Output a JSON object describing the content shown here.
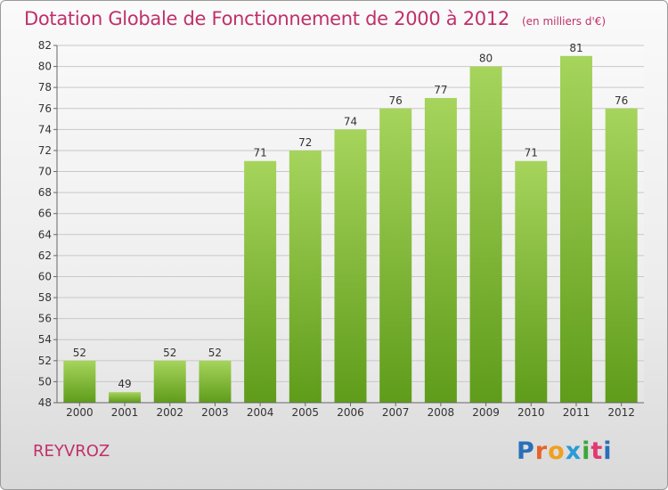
{
  "header": {
    "title": "Dotation Globale de Fonctionnement de 2000 à 2012",
    "unit": "(en milliers d'€)"
  },
  "footer": {
    "place": "REYVROZ",
    "logo_letters": [
      "P",
      "r",
      "o",
      "x",
      "i",
      "t",
      "i"
    ],
    "logo_colors": [
      "#2a6fb8",
      "#e8622a",
      "#f0a020",
      "#2a9bd6",
      "#3aa83a",
      "#e03a70",
      "#2a6fb8"
    ]
  },
  "colors": {
    "bar_top": "#a6d45c",
    "bar_bottom": "#5f9c1a",
    "accent": "#c0306a"
  },
  "chart_data": {
    "type": "bar",
    "categories": [
      "2000",
      "2001",
      "2002",
      "2003",
      "2004",
      "2005",
      "2006",
      "2007",
      "2008",
      "2009",
      "2010",
      "2011",
      "2012"
    ],
    "values": [
      52,
      49,
      52,
      52,
      71,
      72,
      74,
      76,
      77,
      80,
      71,
      81,
      76
    ],
    "ylim": [
      48,
      82
    ],
    "yticks": [
      48,
      50,
      52,
      54,
      56,
      58,
      60,
      62,
      64,
      66,
      68,
      70,
      72,
      74,
      76,
      78,
      80,
      82
    ],
    "grid": true,
    "xlabel": "",
    "ylabel": ""
  }
}
